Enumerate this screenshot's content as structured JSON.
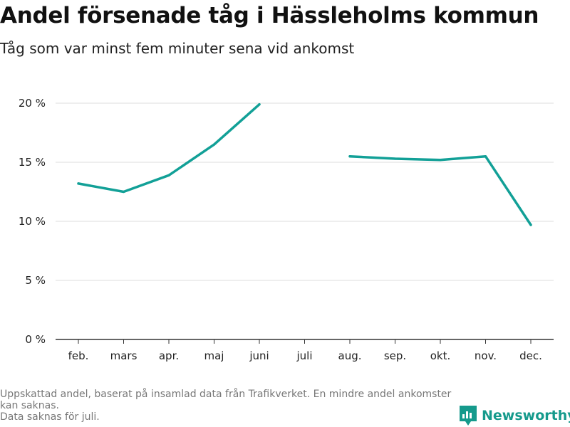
{
  "title": "Andel försenade tåg i Hässleholms kommun",
  "subtitle": "Tåg som var minst fem minuter sena vid ankomst",
  "footnote_1": "Uppskattad andel, baserat på insamlad data från Trafikverket. En mindre andel ankomster kan saknas.",
  "footnote_2": "Data saknas för juli.",
  "brand": "Newsworthy",
  "colors": {
    "line": "#12a097",
    "grid": "#dddddd",
    "axis": "#333333",
    "brand": "#159a8c"
  },
  "chart_data": {
    "type": "line",
    "categories": [
      "feb.",
      "mars",
      "apr.",
      "maj",
      "juni",
      "juli",
      "aug.",
      "sep.",
      "okt.",
      "nov.",
      "dec."
    ],
    "series": [
      {
        "values": [
          13.2,
          12.5,
          13.9,
          16.5,
          19.9,
          null,
          15.5,
          15.3,
          15.2,
          15.5,
          9.7
        ]
      }
    ],
    "yticks": [
      "0 %",
      "5 %",
      "10 %",
      "15 %",
      "20 %"
    ],
    "ylim": [
      0,
      20
    ],
    "grid": true,
    "xlabel": "",
    "ylabel": ""
  }
}
